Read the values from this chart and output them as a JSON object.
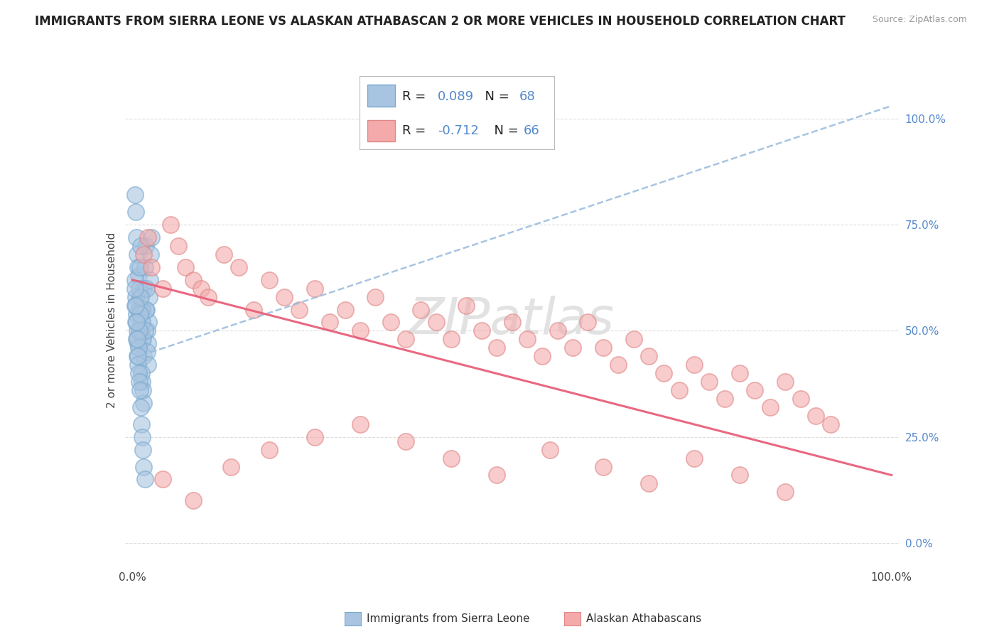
{
  "title": "IMMIGRANTS FROM SIERRA LEONE VS ALASKAN ATHABASCAN 2 OR MORE VEHICLES IN HOUSEHOLD CORRELATION CHART",
  "source": "Source: ZipAtlas.com",
  "ylabel_label": "2 or more Vehicles in Household",
  "ytick_labels": [
    "0.0%",
    "25.0%",
    "50.0%",
    "75.0%",
    "100.0%"
  ],
  "ytick_values": [
    0.0,
    0.25,
    0.5,
    0.75,
    1.0
  ],
  "xtick_labels": [
    "0.0%",
    "100.0%"
  ],
  "xtick_values": [
    0.0,
    1.0
  ],
  "xlim": [
    -0.01,
    1.01
  ],
  "ylim": [
    -0.05,
    1.1
  ],
  "legend_label1": "Immigrants from Sierra Leone",
  "legend_label2": "Alaskan Athabascans",
  "blue_face_color": "#A8C4E0",
  "blue_edge_color": "#7aaacf",
  "pink_face_color": "#F4AAAA",
  "pink_edge_color": "#e08888",
  "blue_trend_color": "#99BBDD",
  "pink_trend_color": "#E8607A",
  "grid_color": "#DDDDDD",
  "title_color": "#222222",
  "source_color": "#999999",
  "right_tick_color": "#5588CC",
  "legend_text_color": "#222222",
  "legend_rn_color": "#5588CC",
  "R1": "0.089",
  "N1": "68",
  "R2": "-0.712",
  "N2": "66",
  "blue_trend_x0": 0.0,
  "blue_trend_y0": 0.435,
  "blue_trend_x1": 1.0,
  "blue_trend_y1": 1.03,
  "pink_trend_x0": 0.0,
  "pink_trend_y0": 0.62,
  "pink_trend_x1": 1.0,
  "pink_trend_y1": 0.16,
  "blue_dots_x": [
    0.003,
    0.004,
    0.005,
    0.006,
    0.007,
    0.008,
    0.009,
    0.01,
    0.011,
    0.012,
    0.013,
    0.014,
    0.015,
    0.016,
    0.017,
    0.018,
    0.019,
    0.02,
    0.021,
    0.022,
    0.023,
    0.024,
    0.025,
    0.003,
    0.004,
    0.005,
    0.006,
    0.007,
    0.008,
    0.009,
    0.01,
    0.011,
    0.012,
    0.013,
    0.014,
    0.015,
    0.016,
    0.017,
    0.018,
    0.019,
    0.02,
    0.003,
    0.004,
    0.005,
    0.006,
    0.007,
    0.008,
    0.009,
    0.01,
    0.011,
    0.012,
    0.013,
    0.014,
    0.015,
    0.003,
    0.004,
    0.005,
    0.006,
    0.007,
    0.008,
    0.009,
    0.01,
    0.011,
    0.012,
    0.013,
    0.014,
    0.015,
    0.016
  ],
  "blue_dots_y": [
    0.82,
    0.78,
    0.72,
    0.68,
    0.65,
    0.63,
    0.58,
    0.55,
    0.52,
    0.5,
    0.48,
    0.55,
    0.6,
    0.65,
    0.7,
    0.55,
    0.5,
    0.47,
    0.52,
    0.58,
    0.62,
    0.68,
    0.72,
    0.62,
    0.58,
    0.54,
    0.5,
    0.47,
    0.55,
    0.6,
    0.65,
    0.7,
    0.55,
    0.52,
    0.48,
    0.44,
    0.5,
    0.55,
    0.6,
    0.45,
    0.42,
    0.56,
    0.52,
    0.48,
    0.44,
    0.42,
    0.46,
    0.5,
    0.54,
    0.58,
    0.4,
    0.38,
    0.36,
    0.33,
    0.6,
    0.56,
    0.52,
    0.48,
    0.44,
    0.4,
    0.38,
    0.36,
    0.32,
    0.28,
    0.25,
    0.22,
    0.18,
    0.15
  ],
  "pink_dots_x": [
    0.015,
    0.02,
    0.025,
    0.04,
    0.05,
    0.06,
    0.07,
    0.08,
    0.09,
    0.1,
    0.12,
    0.14,
    0.16,
    0.18,
    0.2,
    0.22,
    0.24,
    0.26,
    0.28,
    0.3,
    0.32,
    0.34,
    0.36,
    0.38,
    0.4,
    0.42,
    0.44,
    0.46,
    0.48,
    0.5,
    0.52,
    0.54,
    0.56,
    0.58,
    0.6,
    0.62,
    0.64,
    0.66,
    0.68,
    0.7,
    0.72,
    0.74,
    0.76,
    0.78,
    0.8,
    0.82,
    0.84,
    0.86,
    0.88,
    0.9,
    0.04,
    0.08,
    0.13,
    0.18,
    0.24,
    0.3,
    0.36,
    0.42,
    0.48,
    0.55,
    0.62,
    0.68,
    0.74,
    0.8,
    0.86,
    0.92
  ],
  "pink_dots_y": [
    0.68,
    0.72,
    0.65,
    0.6,
    0.75,
    0.7,
    0.65,
    0.62,
    0.6,
    0.58,
    0.68,
    0.65,
    0.55,
    0.62,
    0.58,
    0.55,
    0.6,
    0.52,
    0.55,
    0.5,
    0.58,
    0.52,
    0.48,
    0.55,
    0.52,
    0.48,
    0.56,
    0.5,
    0.46,
    0.52,
    0.48,
    0.44,
    0.5,
    0.46,
    0.52,
    0.46,
    0.42,
    0.48,
    0.44,
    0.4,
    0.36,
    0.42,
    0.38,
    0.34,
    0.4,
    0.36,
    0.32,
    0.38,
    0.34,
    0.3,
    0.15,
    0.1,
    0.18,
    0.22,
    0.25,
    0.28,
    0.24,
    0.2,
    0.16,
    0.22,
    0.18,
    0.14,
    0.2,
    0.16,
    0.12,
    0.28
  ]
}
